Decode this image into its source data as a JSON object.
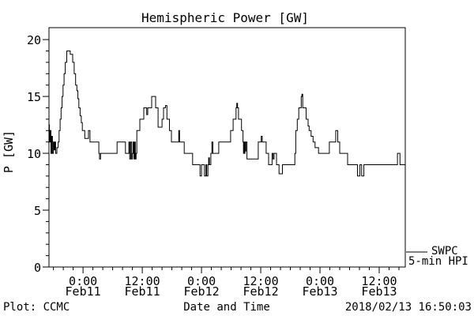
{
  "title": "Hemispheric Power [GW]",
  "y_axis_label": "P [GW]",
  "x_axis_label": "Date and Time",
  "footer": {
    "left": "Plot: CCMC",
    "right": "2018/02/13 16:50:03"
  },
  "legend": {
    "name": "SWPC",
    "sub": "5-min HPI",
    "line_color": "#000000"
  },
  "colors": {
    "line": "#000000",
    "background": "#ffffff",
    "axis": "#000000"
  },
  "chart_data": {
    "type": "line",
    "step": true,
    "title": "Hemispheric Power [GW]",
    "xlabel": "Date and Time",
    "ylabel": "P [GW]",
    "legend": "SWPC 5-min HPI",
    "legend_position": "right-outside-bottom",
    "grid": false,
    "ylim": [
      0,
      21.05
    ],
    "y_major_ticks": [
      0,
      5,
      10,
      15,
      20
    ],
    "y_minor_step": 1,
    "x_unit": "hours since 2018-02-11 00:00",
    "x_range_hours": [
      -6.9,
      65.28
    ],
    "x_minor_step_hours": 2,
    "x_ticks": [
      {
        "t": 0,
        "time": "0:00",
        "date": "Feb11"
      },
      {
        "t": 12,
        "time": "12:00",
        "date": "Feb11"
      },
      {
        "t": 24,
        "time": "0:00",
        "date": "Feb12"
      },
      {
        "t": 36,
        "time": "12:00",
        "date": "Feb12"
      },
      {
        "t": 48,
        "time": "0:00",
        "date": "Feb13"
      },
      {
        "t": 60,
        "time": "12:00",
        "date": "Feb13"
      }
    ],
    "series": [
      {
        "name": "SWPC 5-min HPI",
        "points": [
          [
            -6.9,
            12.5
          ],
          [
            -6.8,
            11
          ],
          [
            -6.65,
            12
          ],
          [
            -6.5,
            10
          ],
          [
            -6.35,
            11.5
          ],
          [
            -6.2,
            10
          ],
          [
            -6.0,
            11
          ],
          [
            -5.85,
            10.3
          ],
          [
            -5.7,
            11
          ],
          [
            -5.55,
            10
          ],
          [
            -5.3,
            10.5
          ],
          [
            -5.05,
            11
          ],
          [
            -4.85,
            12
          ],
          [
            -4.65,
            13
          ],
          [
            -4.45,
            14
          ],
          [
            -4.25,
            15
          ],
          [
            -4.05,
            16
          ],
          [
            -3.85,
            17
          ],
          [
            -3.6,
            18
          ],
          [
            -3.3,
            19
          ],
          [
            -2.6,
            18.7
          ],
          [
            -2.1,
            18
          ],
          [
            -1.8,
            17
          ],
          [
            -1.5,
            16
          ],
          [
            -1.25,
            15.5
          ],
          [
            -1.05,
            14.8
          ],
          [
            -0.85,
            14
          ],
          [
            -0.6,
            13.3
          ],
          [
            -0.35,
            12.7
          ],
          [
            -0.15,
            12
          ],
          [
            0.35,
            11.3
          ],
          [
            1.1,
            12
          ],
          [
            1.4,
            11
          ],
          [
            3.2,
            10
          ],
          [
            3.35,
            9.5
          ],
          [
            3.55,
            10
          ],
          [
            6.9,
            11
          ],
          [
            8.6,
            10
          ],
          [
            9.3,
            11
          ],
          [
            9.45,
            9.5
          ],
          [
            9.65,
            11
          ],
          [
            9.85,
            9.5
          ],
          [
            10.0,
            10
          ],
          [
            10.15,
            11
          ],
          [
            10.3,
            9.5
          ],
          [
            10.45,
            11
          ],
          [
            10.6,
            9.5
          ],
          [
            10.75,
            10
          ],
          [
            10.9,
            12
          ],
          [
            11.5,
            13
          ],
          [
            12.3,
            14
          ],
          [
            12.9,
            13.4
          ],
          [
            13.1,
            14
          ],
          [
            13.9,
            15
          ],
          [
            14.7,
            14
          ],
          [
            15.2,
            12.3
          ],
          [
            16.0,
            13
          ],
          [
            16.3,
            14
          ],
          [
            16.7,
            14.2
          ],
          [
            17.0,
            13
          ],
          [
            17.5,
            12
          ],
          [
            17.9,
            11
          ],
          [
            19.4,
            12
          ],
          [
            19.55,
            11
          ],
          [
            20.5,
            10
          ],
          [
            22.2,
            9
          ],
          [
            23.7,
            8
          ],
          [
            24.0,
            9
          ],
          [
            24.6,
            8
          ],
          [
            24.9,
            9
          ],
          [
            25.05,
            8
          ],
          [
            25.3,
            9
          ],
          [
            25.45,
            9.6
          ],
          [
            25.6,
            9
          ],
          [
            25.9,
            10
          ],
          [
            26.1,
            11
          ],
          [
            26.3,
            10
          ],
          [
            27.5,
            11
          ],
          [
            29.9,
            12
          ],
          [
            30.4,
            13
          ],
          [
            31.0,
            14
          ],
          [
            31.15,
            14.4
          ],
          [
            31.3,
            14
          ],
          [
            31.5,
            13
          ],
          [
            32.1,
            12
          ],
          [
            32.4,
            11
          ],
          [
            32.5,
            10
          ],
          [
            32.6,
            11
          ],
          [
            32.7,
            10
          ],
          [
            32.8,
            11
          ],
          [
            32.9,
            10.2
          ],
          [
            33.0,
            11
          ],
          [
            33.2,
            9.5
          ],
          [
            35.5,
            11
          ],
          [
            36.1,
            11.5
          ],
          [
            36.3,
            11
          ],
          [
            37.1,
            10
          ],
          [
            37.6,
            9
          ],
          [
            38.3,
            10
          ],
          [
            38.5,
            9.5
          ],
          [
            38.7,
            10
          ],
          [
            39.2,
            9
          ],
          [
            39.7,
            8.2
          ],
          [
            40.4,
            9
          ],
          [
            42.9,
            10
          ],
          [
            43.1,
            12
          ],
          [
            43.4,
            13
          ],
          [
            43.7,
            14
          ],
          [
            44.2,
            15
          ],
          [
            44.35,
            15.2
          ],
          [
            44.5,
            14
          ],
          [
            45.2,
            13
          ],
          [
            45.6,
            12.4
          ],
          [
            45.8,
            12
          ],
          [
            46.2,
            11.5
          ],
          [
            46.6,
            11
          ],
          [
            47.0,
            10.5
          ],
          [
            47.7,
            10
          ],
          [
            49.9,
            11
          ],
          [
            51.2,
            12
          ],
          [
            51.6,
            11
          ],
          [
            52.0,
            10
          ],
          [
            53.6,
            9
          ],
          [
            55.6,
            8
          ],
          [
            56.1,
            9
          ],
          [
            56.45,
            8
          ],
          [
            56.9,
            9
          ],
          [
            63.7,
            10
          ],
          [
            64.2,
            9
          ],
          [
            65.28,
            9
          ]
        ]
      }
    ]
  }
}
